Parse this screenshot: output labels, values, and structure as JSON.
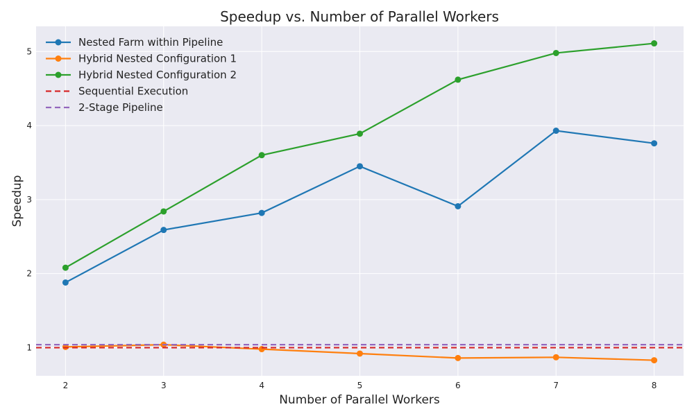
{
  "chart_data": {
    "type": "line",
    "title": "Speedup vs. Number of Parallel Workers",
    "xlabel": "Number of Parallel Workers",
    "ylabel": "Speedup",
    "x": [
      2,
      3,
      4,
      5,
      6,
      7,
      8
    ],
    "xlim": [
      1.7,
      8.3
    ],
    "ylim": [
      0.62,
      5.34
    ],
    "xticks": [
      2,
      3,
      4,
      5,
      6,
      7,
      8
    ],
    "yticks": [
      1,
      2,
      3,
      4,
      5
    ],
    "grid": true,
    "legend_position": "top-left",
    "series": [
      {
        "name": "Nested Farm within Pipeline",
        "color": "#1f77b4",
        "style": "solid",
        "markers": true,
        "values": [
          1.88,
          2.59,
          2.82,
          3.45,
          2.91,
          3.93,
          3.76
        ]
      },
      {
        "name": "Hybrid Nested Configuration 1",
        "color": "#ff7f0e",
        "style": "solid",
        "markers": true,
        "values": [
          1.01,
          1.04,
          0.98,
          0.92,
          0.86,
          0.87,
          0.83
        ]
      },
      {
        "name": "Hybrid Nested Configuration 2",
        "color": "#2ca02c",
        "style": "solid",
        "markers": true,
        "values": [
          2.08,
          2.84,
          3.6,
          3.89,
          4.62,
          4.98,
          5.11
        ]
      },
      {
        "name": "Sequential Execution",
        "color": "#d62728",
        "style": "dashed",
        "markers": false,
        "values": [
          1.0,
          1.0,
          1.0,
          1.0,
          1.0,
          1.0,
          1.0
        ]
      },
      {
        "name": "2-Stage Pipeline",
        "color": "#9467bd",
        "style": "dashed",
        "markers": false,
        "values": [
          1.04,
          1.04,
          1.04,
          1.04,
          1.04,
          1.04,
          1.04
        ]
      }
    ]
  }
}
